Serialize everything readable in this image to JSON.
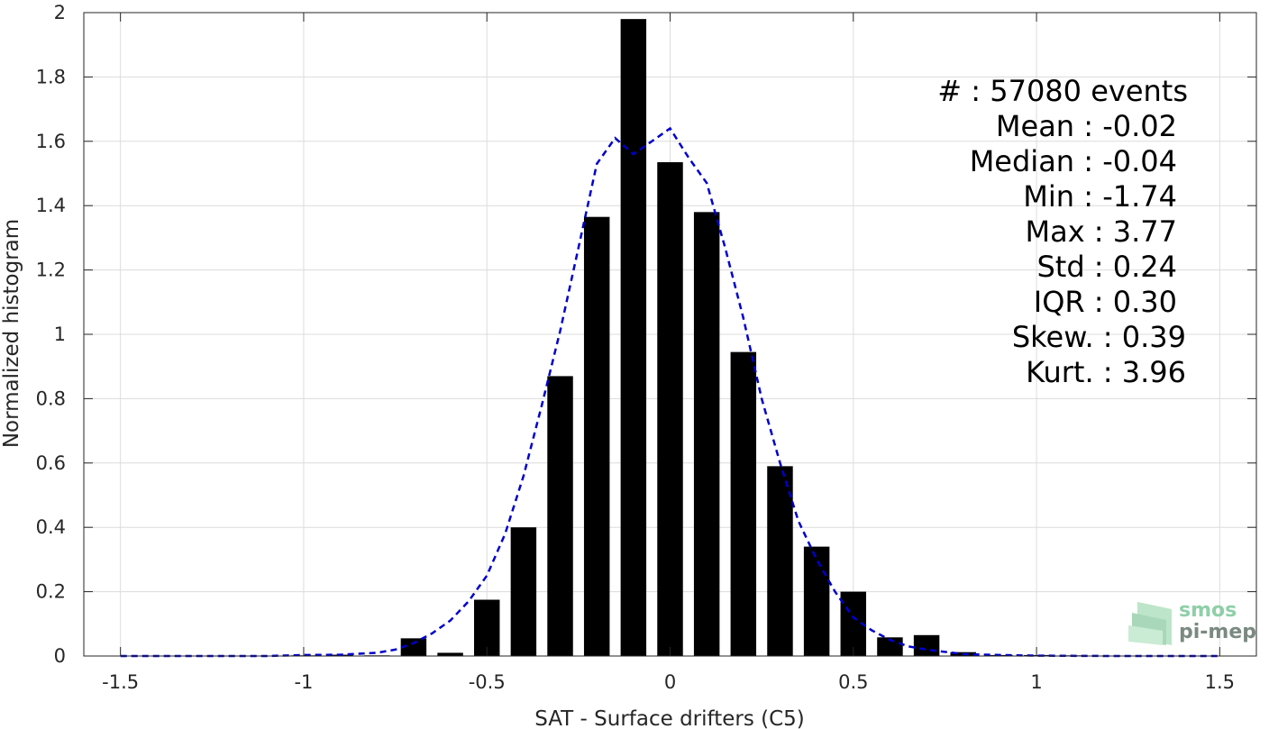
{
  "chart_data": {
    "type": "bar",
    "xlabel": "SAT - Surface drifters (C5)",
    "ylabel": "Normalized histogram",
    "xlim": [
      -1.6,
      1.6
    ],
    "ylim": [
      0,
      2
    ],
    "xticks": [
      -1.5,
      -1,
      -0.5,
      0,
      0.5,
      1,
      1.5
    ],
    "xtick_labels": [
      "-1.5",
      "-1",
      "-0.5",
      "0",
      "0.5",
      "1",
      "1.5"
    ],
    "yticks": [
      0,
      0.2,
      0.4,
      0.6,
      0.8,
      1,
      1.2,
      1.4,
      1.6,
      1.8,
      2
    ],
    "ytick_labels": [
      "0",
      "0.2",
      "0.4",
      "0.6",
      "0.8",
      "1",
      "1.2",
      "1.4",
      "1.6",
      "1.8",
      "2"
    ],
    "grid": true,
    "bar_width": 0.07,
    "bars": {
      "x": [
        -1.5,
        -1.4,
        -1.3,
        -1.2,
        -1.1,
        -1.0,
        -0.9,
        -0.8,
        -0.7,
        -0.6,
        -0.5,
        -0.4,
        -0.3,
        -0.2,
        -0.1,
        0.0,
        0.1,
        0.2,
        0.3,
        0.4,
        0.5,
        0.6,
        0.7,
        0.8,
        0.9,
        1.0,
        1.1,
        1.2,
        1.3,
        1.4,
        1.5
      ],
      "y": [
        0,
        0,
        0,
        0,
        0,
        0.002,
        0.004,
        0.002,
        0.055,
        0.01,
        0.175,
        0.4,
        0.87,
        1.365,
        1.98,
        1.535,
        1.38,
        0.945,
        0.59,
        0.34,
        0.2,
        0.058,
        0.065,
        0.012,
        0.003,
        0.003,
        0.002,
        0.001,
        0,
        0,
        0
      ]
    },
    "fit_curve": {
      "color": "#0000cc",
      "style": "dashed",
      "x": [
        -1.5,
        -1.3,
        -1.1,
        -1.0,
        -0.9,
        -0.8,
        -0.75,
        -0.7,
        -0.65,
        -0.6,
        -0.55,
        -0.5,
        -0.45,
        -0.4,
        -0.35,
        -0.3,
        -0.25,
        -0.2,
        -0.15,
        -0.1,
        -0.05,
        0.0,
        0.05,
        0.1,
        0.15,
        0.2,
        0.25,
        0.3,
        0.35,
        0.4,
        0.45,
        0.5,
        0.55,
        0.6,
        0.65,
        0.7,
        0.8,
        0.9,
        1.0,
        1.2,
        1.5
      ],
      "y": [
        0,
        0,
        0,
        0.003,
        0.004,
        0.01,
        0.02,
        0.04,
        0.07,
        0.11,
        0.17,
        0.25,
        0.38,
        0.56,
        0.78,
        1.01,
        1.27,
        1.53,
        1.61,
        1.56,
        1.6,
        1.64,
        1.55,
        1.47,
        1.27,
        1.05,
        0.8,
        0.6,
        0.42,
        0.3,
        0.2,
        0.12,
        0.08,
        0.05,
        0.03,
        0.02,
        0.006,
        0.003,
        0.001,
        0,
        0
      ]
    }
  },
  "stats": [
    {
      "label": "#  ",
      "sep": " : ",
      "value": "57080 events"
    },
    {
      "label": "Mean",
      "sep": " : ",
      "value": "-0.02"
    },
    {
      "label": "Median",
      "sep": " : ",
      "value": "-0.04"
    },
    {
      "label": "Min",
      "sep": " : ",
      "value": "-1.74"
    },
    {
      "label": "Max",
      "sep": " : ",
      "value": "3.77"
    },
    {
      "label": "Std",
      "sep": " : ",
      "value": "0.24"
    },
    {
      "label": "IQR",
      "sep": " : ",
      "value": "0.30"
    },
    {
      "label": "Skew.",
      "sep": " : ",
      "value": "0.39"
    },
    {
      "label": "Kurt.",
      "sep": " : ",
      "value": "3.96"
    }
  ],
  "logo": {
    "line1": "smos",
    "line2": "pi-mep",
    "color1": "#8fcfa8",
    "color2": "#7a8a80"
  },
  "colors": {
    "bars": "#000000",
    "grid": "#dcdcdc",
    "axis": "#262626"
  }
}
